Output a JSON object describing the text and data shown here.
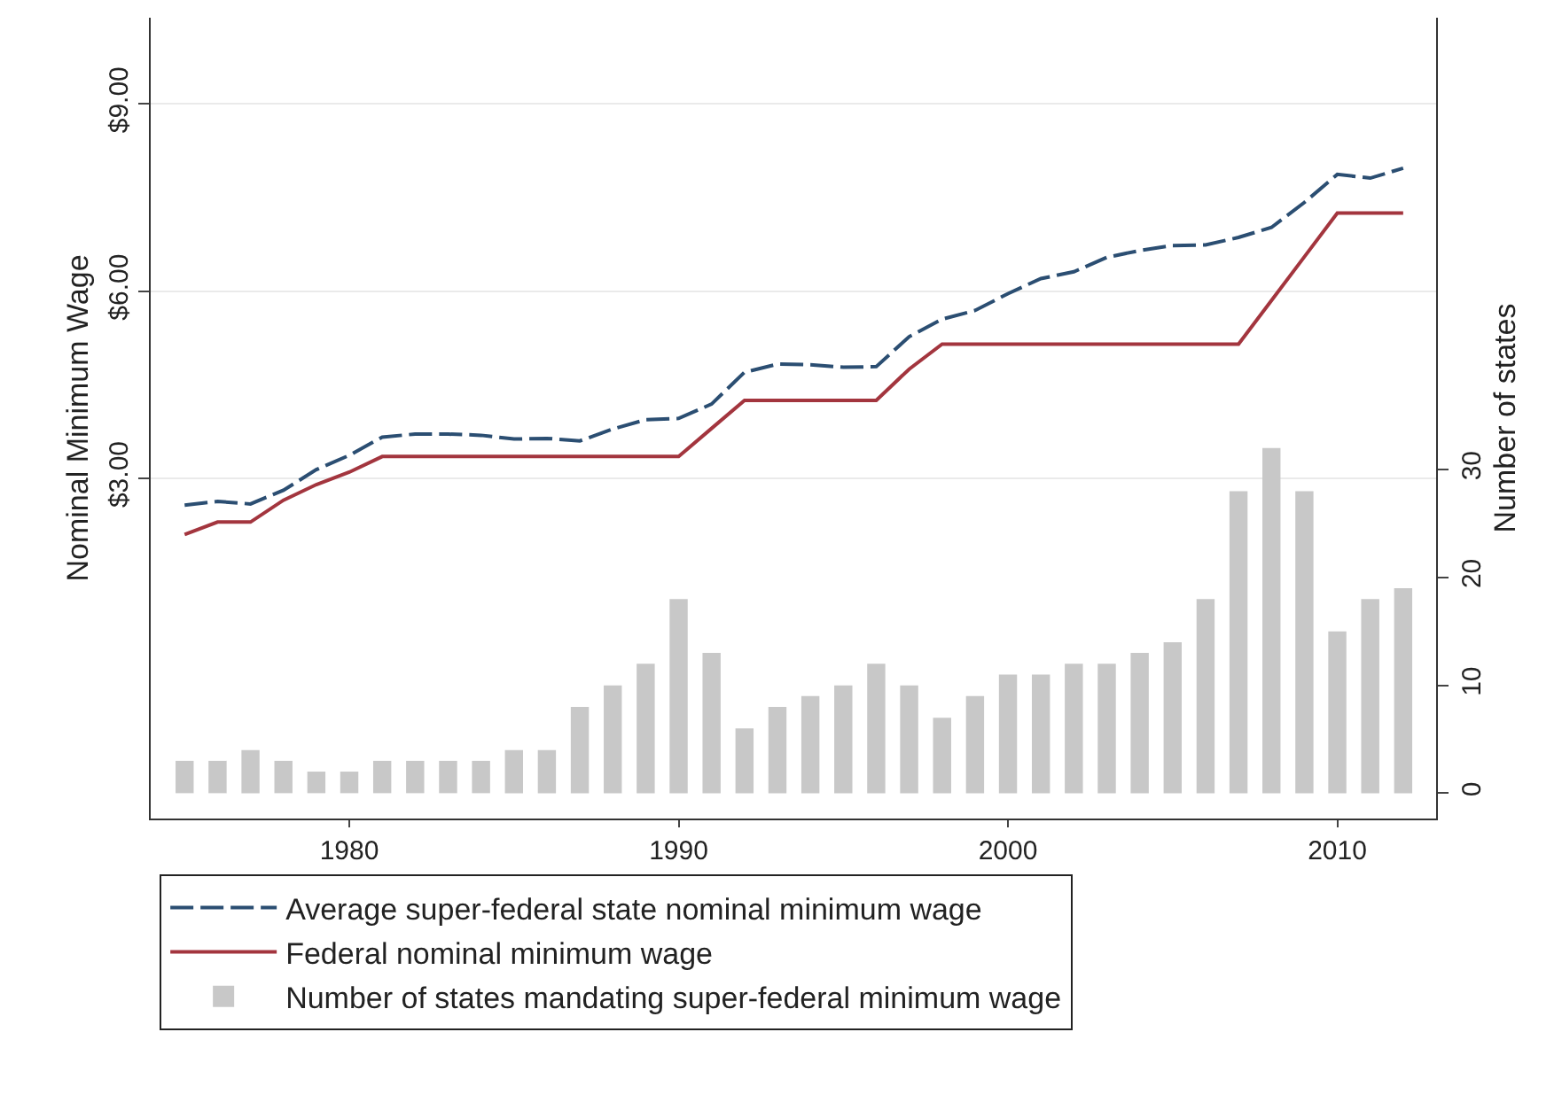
{
  "chart_data": {
    "type": "line",
    "ylabel": "Nominal Minimum Wage",
    "y2label": "Number of states",
    "x": [
      1975,
      1976,
      1977,
      1978,
      1979,
      1980,
      1981,
      1982,
      1983,
      1984,
      1985,
      1986,
      1987,
      1988,
      1989,
      1990,
      1991,
      1992,
      1993,
      1994,
      1995,
      1996,
      1997,
      1998,
      1999,
      2000,
      2001,
      2002,
      2003,
      2004,
      2005,
      2006,
      2007,
      2008,
      2009,
      2010,
      2011,
      2012
    ],
    "series": [
      {
        "name": "Average super-federal state nominal minimum wage",
        "color": "#2b4e72",
        "line_style": "dashed",
        "values": [
          2.57,
          2.63,
          2.59,
          2.81,
          3.14,
          3.37,
          3.66,
          3.71,
          3.71,
          3.69,
          3.63,
          3.64,
          3.6,
          3.79,
          3.94,
          3.96,
          4.19,
          4.7,
          4.83,
          4.82,
          4.78,
          4.79,
          5.27,
          5.55,
          5.69,
          5.96,
          6.2,
          6.31,
          6.54,
          6.65,
          6.73,
          6.74,
          6.86,
          7.02,
          7.42,
          7.87,
          7.81,
          7.97
        ]
      },
      {
        "name": "Federal nominal minimum wage",
        "color": "#a3353e",
        "line_style": "solid",
        "values": [
          2.1,
          2.3,
          2.3,
          2.65,
          2.9,
          3.1,
          3.35,
          3.35,
          3.35,
          3.35,
          3.35,
          3.35,
          3.35,
          3.35,
          3.35,
          3.35,
          3.8,
          4.25,
          4.25,
          4.25,
          4.25,
          4.25,
          4.75,
          5.15,
          5.15,
          5.15,
          5.15,
          5.15,
          5.15,
          5.15,
          5.15,
          5.15,
          5.15,
          5.85,
          6.55,
          7.25,
          7.25,
          7.25
        ]
      },
      {
        "name": "Number of states mandating super-federal minimum wage",
        "type": "bar",
        "axis": "y2",
        "color": "#c8c8c8",
        "values": [
          3,
          3,
          4,
          3,
          2,
          2,
          3,
          3,
          3,
          3,
          4,
          4,
          8,
          10,
          12,
          18,
          13,
          6,
          8,
          9,
          10,
          12,
          10,
          7,
          9,
          11,
          11,
          12,
          12,
          13,
          14,
          18,
          28,
          32,
          28,
          15,
          18,
          19
        ]
      }
    ],
    "xlim": [
      1973.97,
      2013.0
    ],
    "xticks": [
      1980,
      1990,
      2000,
      2010
    ],
    "ylim": [
      -2.45,
      10.38
    ],
    "yticks": [
      {
        "value": 3,
        "label": "$3.00"
      },
      {
        "value": 6,
        "label": "$6.00"
      },
      {
        "value": 9,
        "label": "$9.00"
      }
    ],
    "y2lim": [
      -2.35,
      71.9
    ],
    "y2ticks": [
      0,
      10,
      20,
      30
    ],
    "grid": "y",
    "legend": "bottom"
  }
}
